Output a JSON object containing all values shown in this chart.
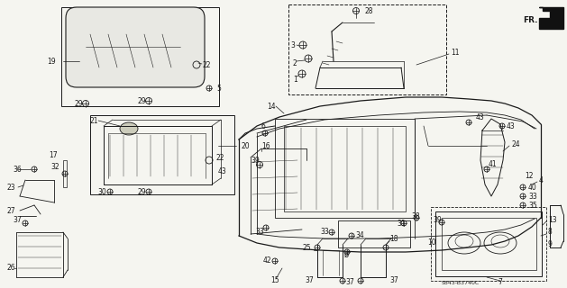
{
  "bg_color": "#f5f5f0",
  "diagram_color": "#1a1a1a",
  "fig_width": 6.29,
  "fig_height": 3.2,
  "dpi": 100,
  "diagram_code": "S843-B3740C"
}
